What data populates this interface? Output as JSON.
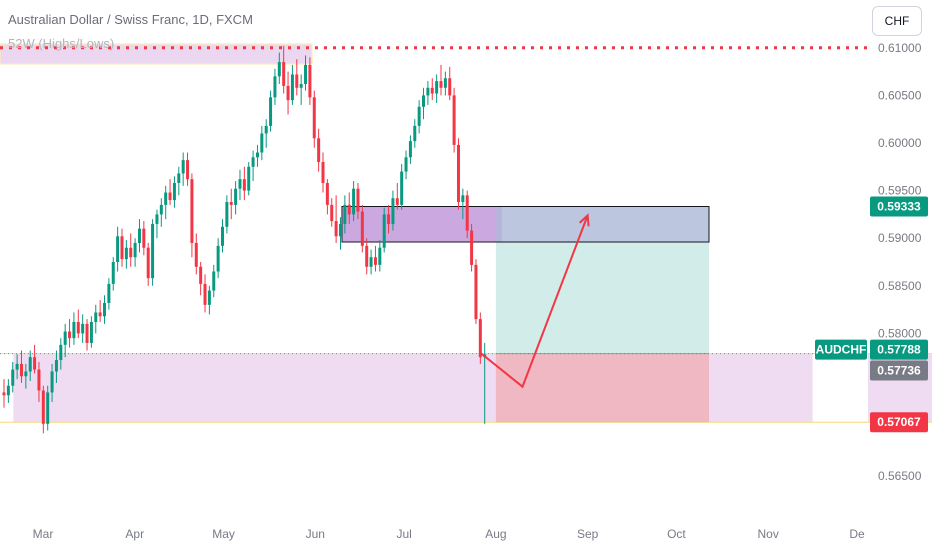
{
  "header": {
    "title": "Australian Dollar / Swiss Franc, 1D, FXCM",
    "indicator": "52W (Highs/Lows)"
  },
  "currency_button": "CHF",
  "chart_data": {
    "type": "candlestick",
    "symbol": "AUDCHF",
    "ylim": [
      0.5625,
      0.6125
    ],
    "y_ticks": [
      "0.61000",
      "0.60500",
      "0.60000",
      "0.59500",
      "0.59000",
      "0.58500",
      "0.58000",
      "0.56500"
    ],
    "x_ticks": [
      "Mar",
      "Apr",
      "May",
      "Jun",
      "Jul",
      "Aug",
      "Sep",
      "Oct",
      "Nov",
      "De"
    ],
    "x_tick_days": [
      0,
      31,
      61,
      92,
      122,
      153,
      184,
      214,
      245,
      275
    ],
    "price_labels": [
      {
        "text": "0.59333",
        "value": 0.59333,
        "color": "#089981"
      },
      {
        "text": "0.57788",
        "value": 0.57788,
        "color": "#089981",
        "tag": "AUDCHF"
      },
      {
        "text": "0.57736",
        "value": 0.57736,
        "color": "#787b86"
      },
      {
        "text": "0.57067",
        "value": 0.57067,
        "color": "#f23645"
      }
    ],
    "zones": [
      {
        "name": "support-zone",
        "from_day": -10,
        "to_day": 260,
        "low": 0.57067,
        "high": 0.57788,
        "color": "#e1bee7"
      },
      {
        "name": "resistance-zone",
        "from_day": 101,
        "to_day": 155,
        "low": 0.5896,
        "high": 0.59333,
        "color": "#ce93d8"
      }
    ],
    "resistance_line": 0.61,
    "position": {
      "entry_day": 153,
      "end_day": 225,
      "entry": 0.57788,
      "target": 0.59333,
      "stop": 0.57067
    },
    "projection": [
      [
        148,
        0.5779
      ],
      [
        162,
        0.5744
      ],
      [
        184,
        0.5924
      ]
    ],
    "candles": [
      [
        0.5738,
        0.5752,
        0.5722,
        0.5735
      ],
      [
        0.5735,
        0.5752,
        0.5727,
        0.5745
      ],
      [
        0.5745,
        0.577,
        0.5738,
        0.5762
      ],
      [
        0.5762,
        0.5778,
        0.5752,
        0.5768
      ],
      [
        0.5768,
        0.5782,
        0.5748,
        0.5755
      ],
      [
        0.5755,
        0.5768,
        0.5742,
        0.576
      ],
      [
        0.576,
        0.5782,
        0.575,
        0.5775
      ],
      [
        0.5775,
        0.5788,
        0.5758,
        0.5762
      ],
      [
        0.5762,
        0.577,
        0.5728,
        0.574
      ],
      [
        0.574,
        0.5745,
        0.5695,
        0.5705
      ],
      [
        0.5705,
        0.5745,
        0.5698,
        0.5738
      ],
      [
        0.5738,
        0.5768,
        0.5728,
        0.576
      ],
      [
        0.576,
        0.5782,
        0.5748,
        0.5772
      ],
      [
        0.5772,
        0.5795,
        0.5762,
        0.5788
      ],
      [
        0.5788,
        0.581,
        0.5775,
        0.5802
      ],
      [
        0.5802,
        0.5815,
        0.5785,
        0.5795
      ],
      [
        0.5795,
        0.5822,
        0.5788,
        0.5812
      ],
      [
        0.5812,
        0.5825,
        0.5795,
        0.58
      ],
      [
        0.58,
        0.582,
        0.579,
        0.581
      ],
      [
        0.581,
        0.5815,
        0.5782,
        0.579
      ],
      [
        0.579,
        0.5818,
        0.5785,
        0.5812
      ],
      [
        0.5812,
        0.583,
        0.58,
        0.5822
      ],
      [
        0.5822,
        0.5835,
        0.5812,
        0.5818
      ],
      [
        0.5818,
        0.584,
        0.581,
        0.5832
      ],
      [
        0.5832,
        0.5858,
        0.5825,
        0.5852
      ],
      [
        0.5852,
        0.588,
        0.5845,
        0.5875
      ],
      [
        0.5875,
        0.5912,
        0.5865,
        0.5902
      ],
      [
        0.5902,
        0.591,
        0.587,
        0.5878
      ],
      [
        0.5878,
        0.5898,
        0.5868,
        0.589
      ],
      [
        0.589,
        0.5905,
        0.587,
        0.588
      ],
      [
        0.588,
        0.59,
        0.587,
        0.5895
      ],
      [
        0.5895,
        0.592,
        0.5885,
        0.591
      ],
      [
        0.591,
        0.5918,
        0.5882,
        0.589
      ],
      [
        0.589,
        0.5895,
        0.585,
        0.5858
      ],
      [
        0.5858,
        0.592,
        0.585,
        0.5915
      ],
      [
        0.5915,
        0.593,
        0.59,
        0.5925
      ],
      [
        0.5925,
        0.5942,
        0.5912,
        0.5935
      ],
      [
        0.5935,
        0.5955,
        0.592,
        0.5948
      ],
      [
        0.5948,
        0.5962,
        0.5935,
        0.594
      ],
      [
        0.594,
        0.5965,
        0.5932,
        0.5958
      ],
      [
        0.5958,
        0.5975,
        0.5945,
        0.5968
      ],
      [
        0.5968,
        0.599,
        0.5955,
        0.5982
      ],
      [
        0.5982,
        0.599,
        0.5955,
        0.5962
      ],
      [
        0.5962,
        0.5968,
        0.588,
        0.5895
      ],
      [
        0.5895,
        0.5905,
        0.5862,
        0.587
      ],
      [
        0.587,
        0.5875,
        0.584,
        0.5852
      ],
      [
        0.5852,
        0.5862,
        0.5822,
        0.583
      ],
      [
        0.583,
        0.585,
        0.582,
        0.5845
      ],
      [
        0.5845,
        0.5872,
        0.5838,
        0.5865
      ],
      [
        0.5865,
        0.59,
        0.5858,
        0.5892
      ],
      [
        0.5892,
        0.592,
        0.5885,
        0.5912
      ],
      [
        0.5912,
        0.5945,
        0.5905,
        0.5938
      ],
      [
        0.5938,
        0.5952,
        0.592,
        0.5935
      ],
      [
        0.5935,
        0.596,
        0.5925,
        0.5952
      ],
      [
        0.5952,
        0.5972,
        0.594,
        0.5962
      ],
      [
        0.5962,
        0.5975,
        0.594,
        0.595
      ],
      [
        0.595,
        0.598,
        0.5945,
        0.5975
      ],
      [
        0.5975,
        0.5992,
        0.596,
        0.5985
      ],
      [
        0.5985,
        0.5998,
        0.5975,
        0.599
      ],
      [
        0.599,
        0.6018,
        0.5982,
        0.601
      ],
      [
        0.601,
        0.6025,
        0.5995,
        0.6018
      ],
      [
        0.6018,
        0.6055,
        0.6012,
        0.6048
      ],
      [
        0.6048,
        0.6078,
        0.604,
        0.607
      ],
      [
        0.607,
        0.6095,
        0.6062,
        0.6085
      ],
      [
        0.6085,
        0.6102,
        0.6052,
        0.606
      ],
      [
        0.606,
        0.6075,
        0.603,
        0.6045
      ],
      [
        0.6045,
        0.6082,
        0.604,
        0.6072
      ],
      [
        0.6072,
        0.6088,
        0.605,
        0.6058
      ],
      [
        0.6058,
        0.6072,
        0.604,
        0.6062
      ],
      [
        0.6062,
        0.6092,
        0.6055,
        0.6082
      ],
      [
        0.6082,
        0.609,
        0.604,
        0.6048
      ],
      [
        0.6048,
        0.6055,
        0.5995,
        0.6005
      ],
      [
        0.6005,
        0.6015,
        0.597,
        0.598
      ],
      [
        0.598,
        0.599,
        0.5948,
        0.5958
      ],
      [
        0.5958,
        0.5962,
        0.5925,
        0.5935
      ],
      [
        0.5935,
        0.5942,
        0.5912,
        0.5918
      ],
      [
        0.5918,
        0.5945,
        0.5895,
        0.5902
      ],
      [
        0.5902,
        0.5922,
        0.5888,
        0.5915
      ],
      [
        0.5915,
        0.5945,
        0.5905,
        0.5935
      ],
      [
        0.5935,
        0.5948,
        0.5915,
        0.5925
      ],
      [
        0.5925,
        0.596,
        0.5918,
        0.5952
      ],
      [
        0.5952,
        0.5958,
        0.592,
        0.5928
      ],
      [
        0.5928,
        0.5935,
        0.5885,
        0.5892
      ],
      [
        0.5892,
        0.59,
        0.5862,
        0.587
      ],
      [
        0.587,
        0.5888,
        0.5862,
        0.588
      ],
      [
        0.588,
        0.5892,
        0.5865,
        0.5872
      ],
      [
        0.5872,
        0.5898,
        0.5865,
        0.589
      ],
      [
        0.589,
        0.5932,
        0.5885,
        0.5925
      ],
      [
        0.5925,
        0.5935,
        0.5905,
        0.5915
      ],
      [
        0.5915,
        0.595,
        0.5908,
        0.5942
      ],
      [
        0.5942,
        0.5958,
        0.593,
        0.5935
      ],
      [
        0.5935,
        0.5978,
        0.593,
        0.597
      ],
      [
        0.597,
        0.5992,
        0.5962,
        0.5985
      ],
      [
        0.5985,
        0.6008,
        0.5978,
        0.6002
      ],
      [
        0.6002,
        0.6025,
        0.5995,
        0.6018
      ],
      [
        0.6018,
        0.6045,
        0.601,
        0.6038
      ],
      [
        0.6038,
        0.6058,
        0.6025,
        0.605
      ],
      [
        0.605,
        0.6065,
        0.604,
        0.6058
      ],
      [
        0.6058,
        0.6068,
        0.6045,
        0.6052
      ],
      [
        0.6052,
        0.6072,
        0.6042,
        0.6065
      ],
      [
        0.6065,
        0.6082,
        0.605,
        0.6058
      ],
      [
        0.6058,
        0.6075,
        0.605,
        0.6068
      ],
      [
        0.6068,
        0.608,
        0.6045,
        0.605
      ],
      [
        0.605,
        0.6058,
        0.599,
        0.5998
      ],
      [
        0.5998,
        0.6005,
        0.593,
        0.5938
      ],
      [
        0.5938,
        0.5952,
        0.592,
        0.5945
      ],
      [
        0.5945,
        0.595,
        0.59,
        0.5908
      ],
      [
        0.5908,
        0.5915,
        0.5865,
        0.5872
      ],
      [
        0.5872,
        0.5878,
        0.581,
        0.5815
      ],
      [
        0.5815,
        0.5822,
        0.5768,
        0.5775
      ],
      [
        0.5775,
        0.579,
        0.5705,
        0.5778
      ]
    ]
  }
}
